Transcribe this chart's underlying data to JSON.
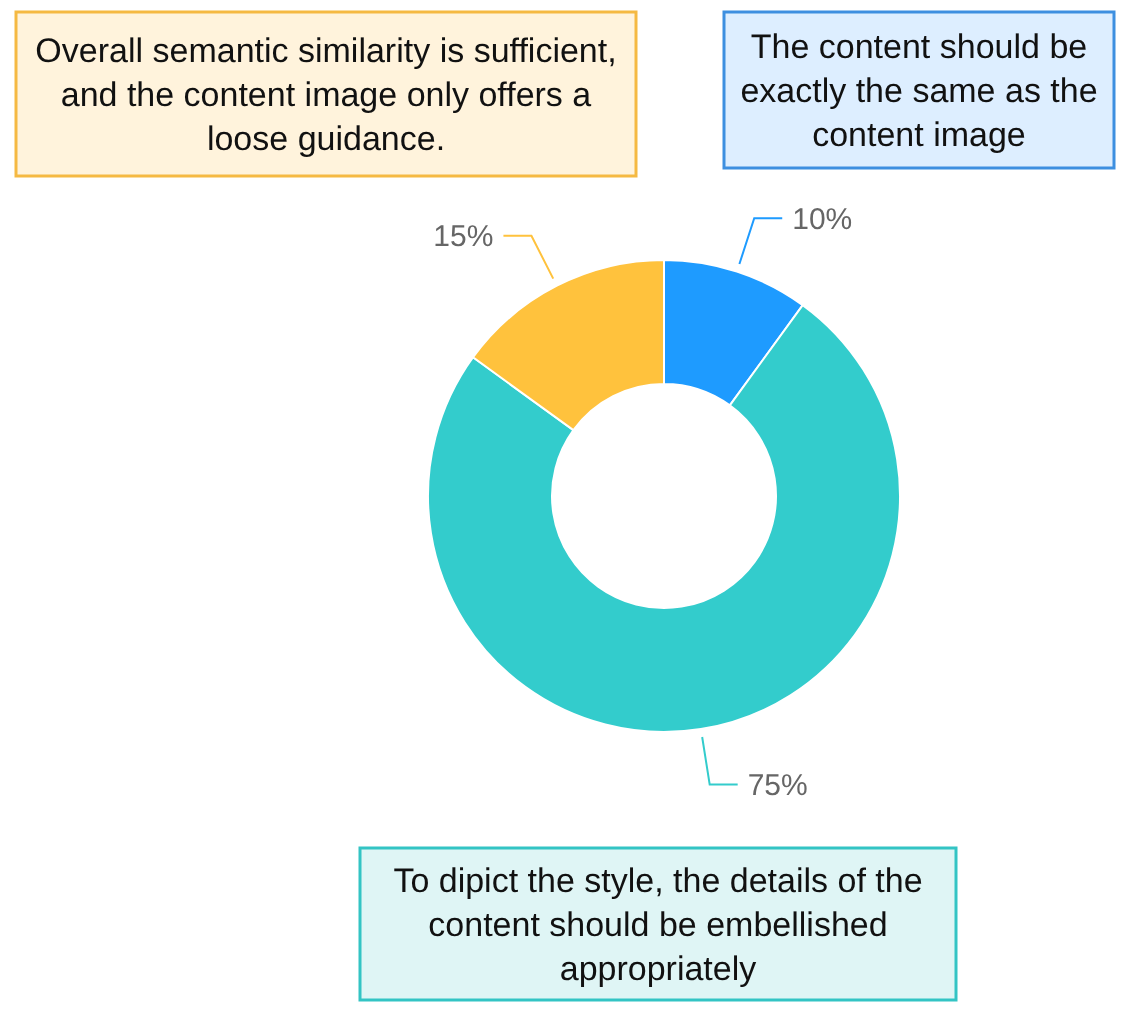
{
  "chart_data": {
    "type": "donut",
    "categories": [
      "The content should be exactly the same as the content image",
      "To dipict the style, the details of the content should be embellished appropriately",
      "Overall semantic similarity is sufficient, and the content image only offers a loose guidance."
    ],
    "values": [
      10,
      75,
      15
    ],
    "colors": [
      "#1e9bff",
      "#33cccc",
      "#ffc23d"
    ],
    "value_labels": [
      "10%",
      "75%",
      "15%"
    ]
  }
}
